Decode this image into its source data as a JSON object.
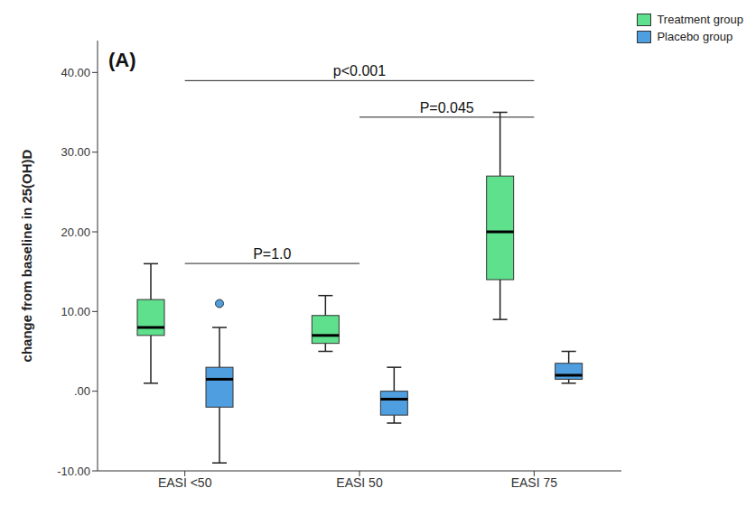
{
  "chart_data": {
    "type": "box",
    "title": "(A)",
    "y_label": "change from baseline in 25(OH)D",
    "categories": [
      "EASI <50",
      "EASI 50",
      "EASI 75"
    ],
    "series": [
      {
        "name": "Treatment group",
        "color": "#5fe08d",
        "min": [
          1,
          5,
          9
        ],
        "q1": [
          7,
          6,
          14
        ],
        "median": [
          8,
          7,
          20
        ],
        "q3": [
          11.5,
          9.5,
          27
        ],
        "max": [
          16,
          12,
          35
        ],
        "outliers": [
          [],
          [],
          []
        ]
      },
      {
        "name": "Placebo group",
        "color": "#4f9fe0",
        "min": [
          -9,
          -4,
          1
        ],
        "q1": [
          -2,
          -3,
          1.5
        ],
        "median": [
          1.5,
          -1,
          2
        ],
        "q3": [
          3,
          0,
          3.5
        ],
        "max": [
          8,
          3,
          5
        ],
        "outliers": [
          [
            11
          ],
          [],
          []
        ]
      }
    ],
    "ylim": [
      -10,
      44
    ],
    "yticks": [
      {
        "value": -10,
        "label": "-10.00"
      },
      {
        "value": 0,
        "label": ".00"
      },
      {
        "value": 10,
        "label": "10.00"
      },
      {
        "value": 20,
        "label": "20.00"
      },
      {
        "value": 30,
        "label": "30.00"
      },
      {
        "value": 40,
        "label": "40.00"
      }
    ],
    "annotations": [
      {
        "text": "p<0.001",
        "from": "EASI <50",
        "to": "EASI 75"
      },
      {
        "text": "P=0.045",
        "from": "EASI 50",
        "to": "EASI 75"
      },
      {
        "text": "P=1.0",
        "from": "EASI <50",
        "to": "EASI 50"
      }
    ],
    "legend": "upper right",
    "grid": false
  }
}
